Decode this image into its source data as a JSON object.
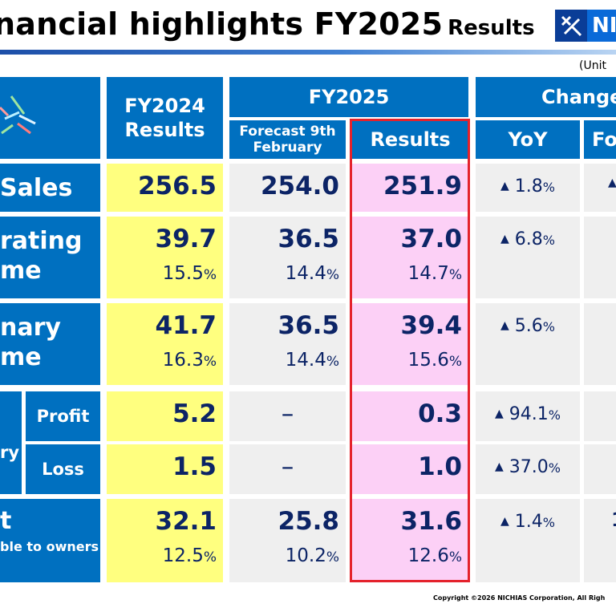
{
  "slide": {
    "title": "nancial highlights FY2025",
    "title_suffix": "Results",
    "logo_text": "NI",
    "unit": "(Unit",
    "copyright": "Copyright ©2026 NICHIAS Corporation, All Righ"
  },
  "table": {
    "headers": {
      "fy2024": "FY2024 Results",
      "fy2025": "FY2025",
      "forecast": "Forecast 9th February",
      "results": "Results",
      "change": "Change",
      "yoy": "YoY",
      "fo": "Fo"
    },
    "rows": {
      "sales": {
        "label": "Sales",
        "fy2024": "256.5",
        "forecast": "254.0",
        "results": "251.9",
        "yoy": "1.8",
        "fo_marker": "▲"
      },
      "operating": {
        "label_1": "rating",
        "label_2": "me",
        "fy2024": "39.7",
        "fy2024_pct": "15.5",
        "forecast": "36.5",
        "forecast_pct": "14.4",
        "results": "37.0",
        "results_pct": "14.7",
        "yoy": "6.8"
      },
      "ordinary": {
        "label_1": "nary",
        "label_2": "me",
        "fy2024": "41.7",
        "fy2024_pct": "16.3",
        "forecast": "36.5",
        "forecast_pct": "14.4",
        "results": "39.4",
        "results_pct": "15.6",
        "yoy": "5.6"
      },
      "extraordinary": {
        "group_label": "ry",
        "profit_label": "Profit",
        "loss_label": "Loss",
        "profit_fy2024": "5.2",
        "profit_forecast": "–",
        "profit_results": "0.3",
        "profit_yoy": "94.1",
        "loss_fy2024": "1.5",
        "loss_forecast": "–",
        "loss_results": "1.0",
        "loss_yoy": "37.0"
      },
      "net": {
        "label_1": "t",
        "label_2": "ble to owners",
        "fy2024": "32.1",
        "fy2024_pct": "12.5",
        "forecast": "25.8",
        "forecast_pct": "10.2",
        "results": "31.6",
        "results_pct": "12.6",
        "yoy": "1.4",
        "fo_partial": "1"
      }
    },
    "percent_sign": "%",
    "decrease_marker": "▲"
  },
  "colors": {
    "header_blue": "#0070c0",
    "fy2024_yellow": "#ffff7f",
    "results_pink": "#fcd0f6",
    "highlight_red": "#e4222c",
    "value_navy": "#0c2466"
  }
}
